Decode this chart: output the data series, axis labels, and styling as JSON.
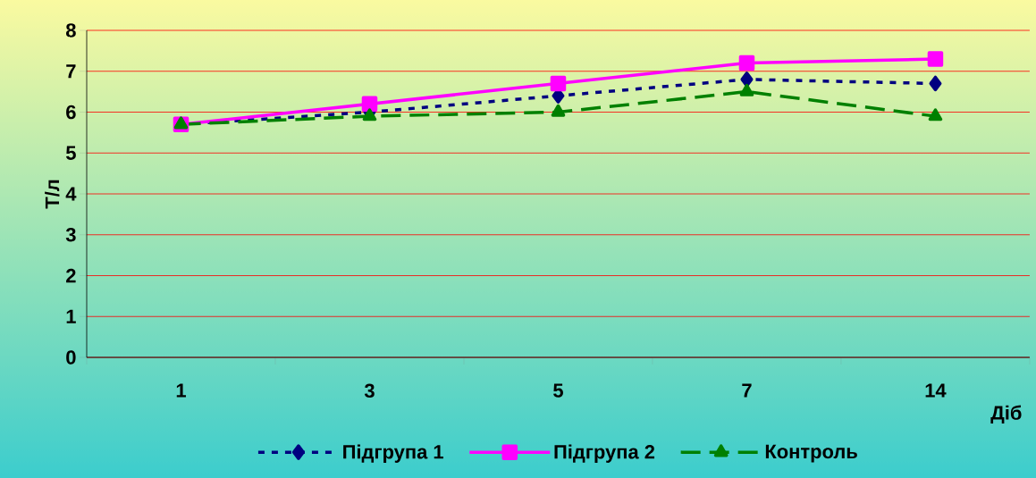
{
  "chart_data": {
    "type": "line",
    "xlabel": "Діб",
    "ylabel": "Т/л",
    "categories": [
      "1",
      "3",
      "5",
      "7",
      "14"
    ],
    "series": [
      {
        "name": "Підгрупа 1",
        "color": "#000080",
        "marker": "diamond",
        "line_style": "dotted",
        "values": [
          5.7,
          6.0,
          6.4,
          6.8,
          6.7
        ]
      },
      {
        "name": "Підгрупа 2",
        "color": "#ff00ff",
        "marker": "square",
        "line_style": "solid",
        "values": [
          5.7,
          6.2,
          6.7,
          7.2,
          7.3
        ]
      },
      {
        "name": "Контроль",
        "color": "#008000",
        "marker": "triangle",
        "line_style": "dashed",
        "values": [
          5.7,
          5.9,
          6.0,
          6.5,
          5.9
        ]
      }
    ],
    "ylim": [
      0,
      8
    ],
    "yticks": [
      0,
      1,
      2,
      3,
      4,
      5,
      6,
      7,
      8
    ],
    "grid": "y",
    "legend": "bottom"
  }
}
